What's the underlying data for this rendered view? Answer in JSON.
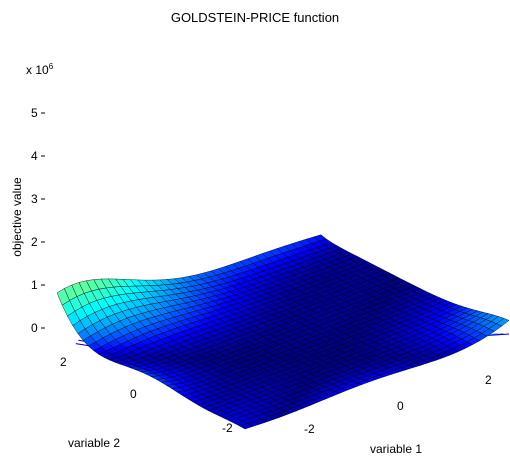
{
  "chart_data": {
    "type": "surface",
    "title": "GOLDSTEIN-PRICE function",
    "scale_factor": "x 10",
    "scale_exponent": "6",
    "zlabel": "objective value",
    "xlabel": "variable 1",
    "ylabel": "variable 2",
    "x_ticks": [
      "-2",
      "0",
      "2"
    ],
    "y_ticks": [
      "-2",
      "0",
      "2"
    ],
    "z_ticks": [
      "0",
      "1",
      "2",
      "3",
      "4",
      "5"
    ],
    "x_range": [
      -2,
      2
    ],
    "y_range": [
      -2,
      2
    ],
    "z_range": [
      0,
      5
    ],
    "colormap": "jet",
    "grid": false,
    "contour_on_base": true
  }
}
